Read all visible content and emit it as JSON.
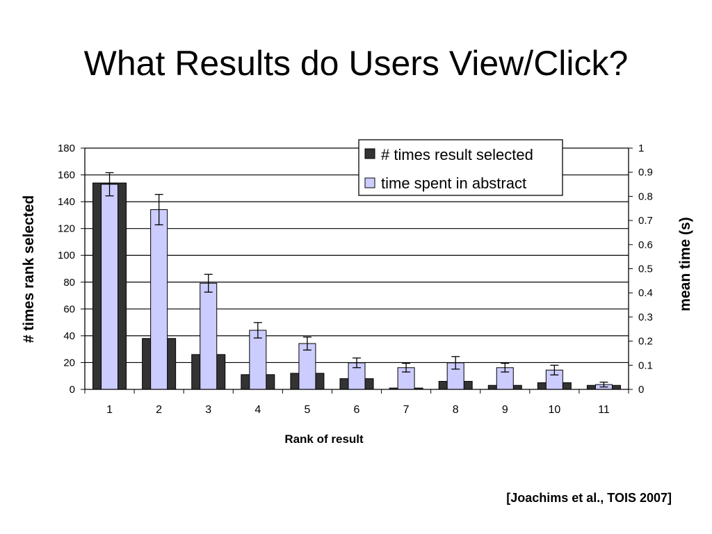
{
  "slide": {
    "title": "What Results do Users View/Click?",
    "citation": "[Joachims et al., TOIS 2007]"
  },
  "chart_data": {
    "type": "bar",
    "xlabel": "Rank of result",
    "ylabel_left": "# times rank selected",
    "ylabel_right": "mean time (s)",
    "categories": [
      "1",
      "2",
      "3",
      "4",
      "5",
      "6",
      "7",
      "8",
      "9",
      "10",
      "11"
    ],
    "ylim_left": [
      0,
      180
    ],
    "yticks_left": [
      "0",
      "20",
      "40",
      "60",
      "80",
      "100",
      "120",
      "140",
      "160",
      "180"
    ],
    "ylim_right": [
      0,
      1
    ],
    "yticks_right": [
      "0",
      "0.1",
      "0.2",
      "0.3",
      "0.4",
      "0.5",
      "0.6",
      "0.7",
      "0.8",
      "0.9",
      "1"
    ],
    "grid": true,
    "legend_position": "top-right",
    "series": [
      {
        "name": "# times result selected",
        "axis": "left",
        "color": "#333333",
        "values": [
          154,
          38,
          26,
          11,
          12,
          8,
          1,
          6,
          3,
          5,
          3
        ]
      },
      {
        "name": "time spent in abstract",
        "axis": "right",
        "color": "#ccccff",
        "values": [
          0.85,
          0.745,
          0.44,
          0.245,
          0.19,
          0.11,
          0.09,
          0.11,
          0.09,
          0.08,
          0.02
        ],
        "error": [
          0.048,
          0.063,
          0.037,
          0.032,
          0.027,
          0.02,
          0.018,
          0.026,
          0.018,
          0.02,
          0.01
        ]
      }
    ]
  }
}
